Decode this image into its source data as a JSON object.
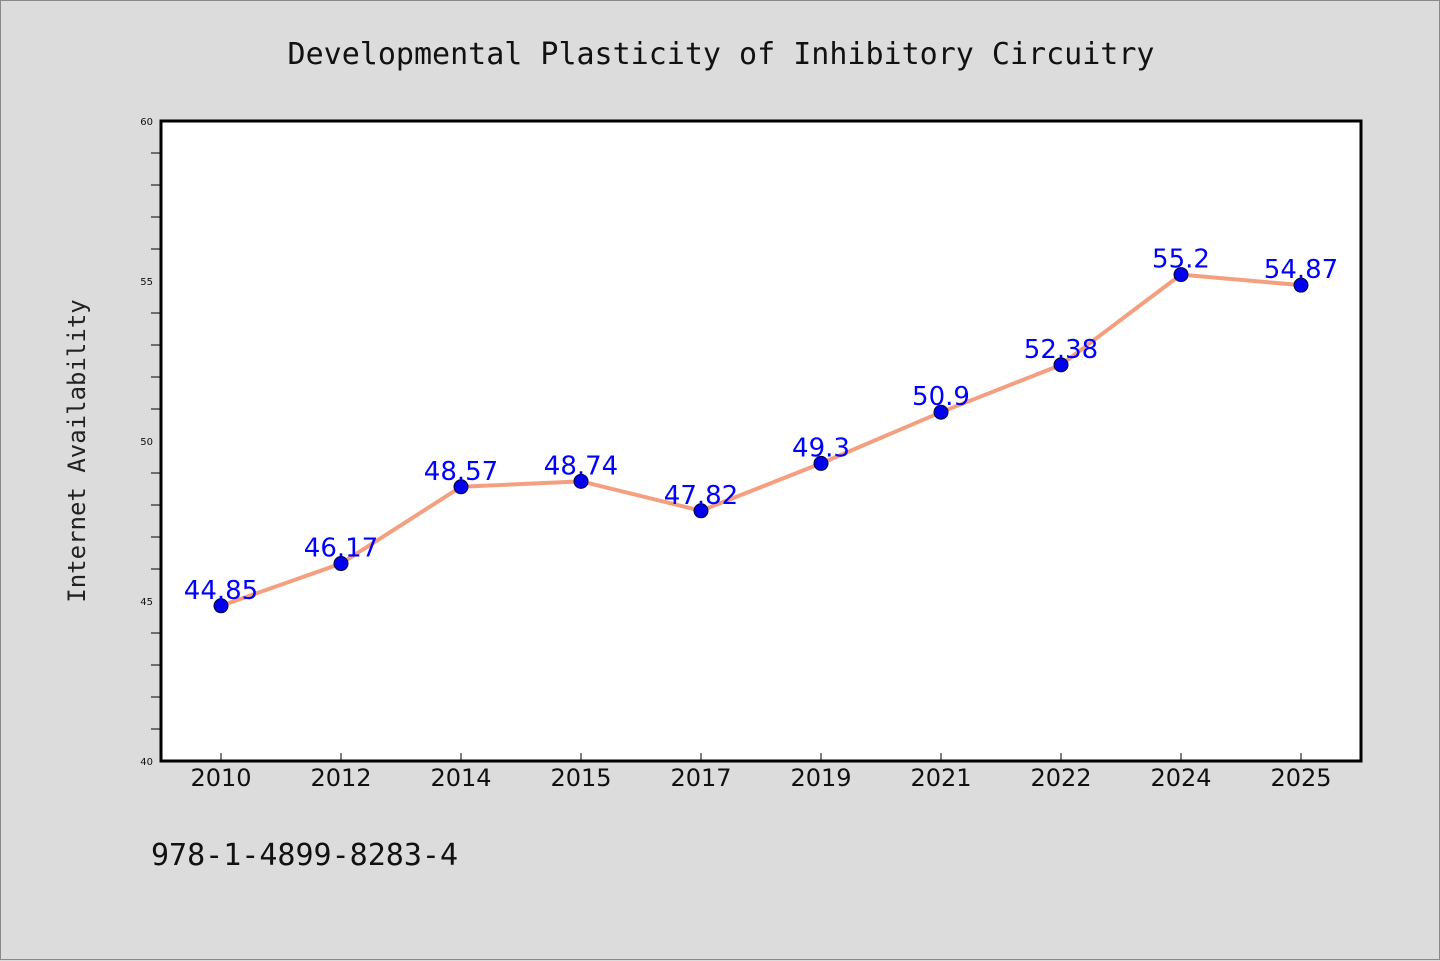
{
  "chart_data": {
    "type": "line",
    "title": "Developmental Plasticity of Inhibitory Circuitry",
    "xlabel": "",
    "ylabel": "Internet Availability",
    "categories": [
      "2010",
      "2012",
      "2014",
      "2015",
      "2017",
      "2019",
      "2021",
      "2022",
      "2024",
      "2025"
    ],
    "series": [
      {
        "values": [
          44.85,
          46.17,
          48.57,
          48.74,
          47.82,
          49.3,
          50.9,
          52.38,
          55.2,
          54.87
        ],
        "labels": [
          "44.85",
          "46.17",
          "48.57",
          "48.74",
          "47.82",
          "49.3",
          "50.9",
          "52.38",
          "55.2",
          "54.87"
        ],
        "line_color": "#f4a080",
        "marker_color": "#0000ee",
        "label_color": "#0000ff"
      }
    ],
    "ylim": [
      40,
      60
    ],
    "yticks": [
      40,
      45,
      50,
      55,
      60
    ],
    "ytick_labels": [
      "40",
      "45",
      "50",
      "55",
      "60"
    ],
    "grid": false,
    "legend": "none"
  },
  "footer": {
    "isbn": "978-1-4899-8283-4"
  },
  "colors": {
    "background": "#dcdcdc",
    "plot_background": "#ffffff",
    "axis": "#000000"
  }
}
